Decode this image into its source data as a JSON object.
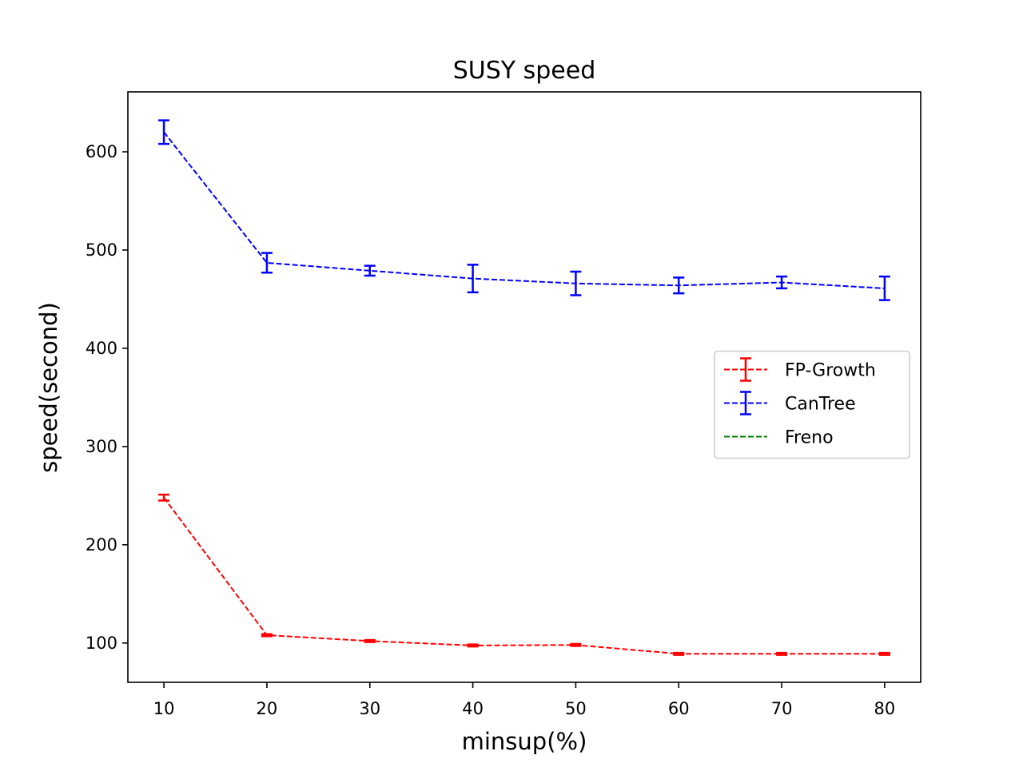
{
  "chart_data": {
    "type": "line",
    "title": "SUSY speed",
    "x_label": "minsup(%)",
    "y_label": "speed(second)",
    "x": [
      10,
      20,
      30,
      40,
      50,
      60,
      70,
      80
    ],
    "series": [
      {
        "name": "FP-Growth",
        "color": "#ff0000",
        "values": [
          248,
          108,
          102,
          97.5,
          98,
          89,
          89,
          89
        ],
        "errors": [
          3,
          1,
          1,
          1,
          1,
          1,
          1,
          1
        ]
      },
      {
        "name": "CanTree",
        "color": "#0000ff",
        "values": [
          620,
          487,
          479,
          471,
          466,
          464,
          467,
          461
        ],
        "errors": [
          12,
          10,
          5,
          14,
          12,
          8,
          6,
          12
        ]
      },
      {
        "name": "Freno",
        "color": "#008000",
        "values": [
          null,
          null,
          null,
          null,
          null,
          null,
          null,
          null
        ]
      }
    ],
    "xlim": [
      6.5,
      83.5
    ],
    "xticks": [
      10,
      20,
      30,
      40,
      50,
      60,
      70,
      80
    ],
    "ylim": [
      60,
      661
    ],
    "yticks": [
      100,
      200,
      300,
      400,
      500,
      600
    ],
    "legend": "center right",
    "grid": false
  }
}
